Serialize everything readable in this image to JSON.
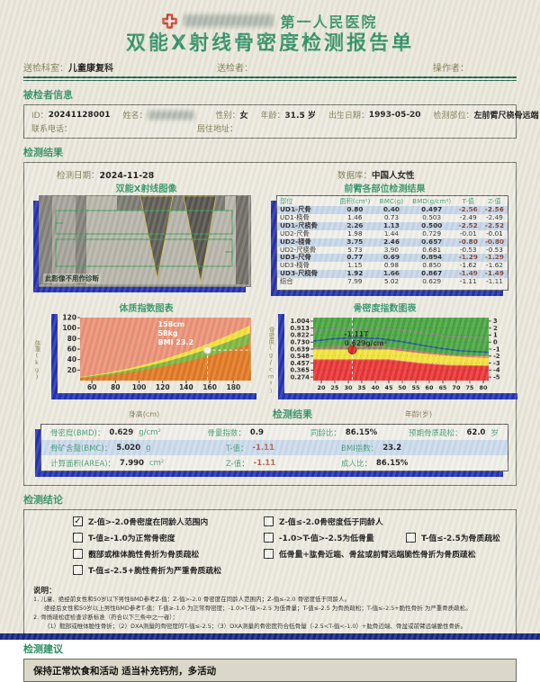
{
  "colors": {
    "heading_green": "#2f8f63",
    "label_olive": "#7d7a4e",
    "axis_blue": "#1c2bb0",
    "stripe_blue": "#c5d5e8",
    "logo_red": "#cc3d2a",
    "bottom_bar_navy": "#10207d",
    "page_background": "#e9e6da"
  },
  "header": {
    "hospital_name": "第一人民医院",
    "report_title": "双能X射线骨密度检测报告单",
    "dept_label": "送检科室：",
    "dept_value": "儿童康复科",
    "sender_label": "送检者：",
    "operator_label": "操作者："
  },
  "patient": {
    "section_title": "被检者信息",
    "id_label": "ID：",
    "id_value": "20241128001",
    "name_label": "姓名：",
    "gender_label": "性别：",
    "gender_value": "女",
    "age_label": "年龄：",
    "age_value": "31.5 岁",
    "birth_label": "出生日期：",
    "birth_value": "1993-05-20",
    "site_label": "检测部位：",
    "site_value": "左前臂尺桡骨远端",
    "phone_label": "联系电话：",
    "address_label": "居住地址："
  },
  "results": {
    "section_title": "检测结果",
    "date_label": "检测日期：",
    "date_value": "2024-11-28",
    "database_label": "数据库：",
    "database_value": "中国人女性",
    "xray_title": "双能X射线图像",
    "xray_note": "此影像不用作诊断",
    "table_title": "前臂各部位检测结果",
    "table": {
      "headers": [
        "部位",
        "面积(cm²)",
        "BMC(g)",
        "BMD(g/cm²)",
        "T-值",
        "Z-值"
      ],
      "rows": [
        [
          "UD1-尺骨",
          "0.80",
          "0.40",
          "0.497",
          "-2.56",
          "-2.56"
        ],
        [
          "UD1-桡骨",
          "1.46",
          "0.73",
          "0.503",
          "-2.49",
          "-2.49"
        ],
        [
          "UD1-尺桡骨",
          "2.26",
          "1.13",
          "0.500",
          "-2.52",
          "-2.52"
        ],
        [
          "UD2-尺骨",
          "1.98",
          "1.44",
          "0.729",
          "-0.01",
          "-0.01"
        ],
        [
          "UD2-桡骨",
          "3.75",
          "2.46",
          "0.657",
          "-0.80",
          "-0.80"
        ],
        [
          "UD2-尺桡骨",
          "5.73",
          "3.90",
          "0.681",
          "-0.53",
          "-0.53"
        ],
        [
          "UD3-尺骨",
          "0.77",
          "0.69",
          "0.894",
          "-1.29",
          "-1.29"
        ],
        [
          "UD3-桡骨",
          "1.15",
          "0.98",
          "0.850",
          "-1.62",
          "-1.62"
        ],
        [
          "UD3-尺桡骨",
          "1.92",
          "1.66",
          "0.867",
          "-1.49",
          "-1.49"
        ],
        [
          "综合",
          "7.99",
          "5.02",
          "0.629",
          "-1.11",
          "-1.11"
        ]
      ]
    },
    "bmi_chart_title": "体质指数图表",
    "bmd_chart_title": "骨密度指数图表",
    "bmi_xlabel": "身高(cm)",
    "bmi_ylabel": "体重(kg)",
    "bmd_xlabel": "年龄(岁)",
    "bmd_ylabel": "骨密度(g/cm²)",
    "summary_title": "检测结果",
    "summary": {
      "rows": [
        [
          {
            "label": "骨密度(BMD)：",
            "value": "0.629",
            "unit": "g/cm²"
          },
          {
            "label": "骨量指数：",
            "value": "0.9"
          },
          {
            "label": "同龄比：",
            "value": "86.15%"
          },
          {
            "label": "预期骨质疏松：",
            "value": "62.0",
            "unit": "岁"
          }
        ],
        [
          {
            "label": "骨矿含量(BMC)：",
            "value": "5.020",
            "unit": "g"
          },
          {
            "label": "T-值：",
            "value": "-1.11",
            "cls": "tz"
          },
          {
            "label": "BMI指数：",
            "value": "23.2"
          }
        ],
        [
          {
            "label": "计算面积(AREA)：",
            "value": "7.990",
            "unit": "cm²"
          },
          {
            "label": "Z-值：",
            "value": "-1.11",
            "cls": "tz"
          },
          {
            "label": "成人比：",
            "value": "86.15%"
          }
        ]
      ]
    }
  },
  "chart_data": [
    {
      "id": "bmi",
      "type": "area",
      "title": "体质指数图表",
      "xlabel": "身高(cm)",
      "ylabel": "体重(kg)",
      "xlim": [
        50,
        195
      ],
      "ylim": [
        0,
        120
      ],
      "xticks": [
        60,
        80,
        100,
        120,
        140,
        160,
        180
      ],
      "yticks": [
        20,
        40,
        60,
        80,
        100,
        120
      ],
      "bmi_boundaries": [
        18.5,
        24,
        28
      ],
      "colors": {
        "under": "#e0741c",
        "normal": "#79b43c",
        "overweight": "#f0e035",
        "obese": "#ea8e72"
      },
      "point": {
        "height_cm": 158,
        "weight_kg": 58,
        "bmi": 23.2
      },
      "annotation": [
        "158cm",
        "58kg",
        "BMI 23.2"
      ],
      "annotation_at": [
        116,
        103
      ]
    },
    {
      "id": "bmd",
      "type": "line",
      "title": "骨密度指数图表",
      "xlabel": "年龄(岁)",
      "ylabel": "骨密度(g/cm²)",
      "xlim": [
        17,
        82
      ],
      "ylim": [
        0.2284,
        1.0497
      ],
      "xticks": [
        20,
        25,
        30,
        35,
        40,
        45,
        50,
        55,
        60,
        65,
        70,
        75,
        80
      ],
      "yticks": [
        "1.004",
        "0.913",
        "0.822",
        "0.730",
        "0.639",
        "0.548",
        "0.457",
        "0.365",
        "0.274"
      ],
      "yticks_right": [
        "3",
        "2",
        "1",
        "0",
        "-1",
        "-2",
        "-3",
        "-4",
        "-5"
      ],
      "colors": {
        "normal": "#43a33c",
        "low_bone_mass": "#f2e337",
        "osteoporosis": "#e82f2f"
      },
      "boundary_low": [
        [
          17,
          0.639
        ],
        [
          45,
          0.639
        ],
        [
          57,
          0.59
        ],
        [
          67,
          0.558
        ],
        [
          82,
          0.545
        ]
      ],
      "boundary_osteo": [
        [
          17,
          0.502
        ],
        [
          45,
          0.502
        ],
        [
          57,
          0.452
        ],
        [
          67,
          0.428
        ],
        [
          82,
          0.418
        ]
      ],
      "mean_curve": [
        [
          17,
          0.745
        ],
        [
          25,
          0.775
        ],
        [
          33,
          0.788
        ],
        [
          42,
          0.775
        ],
        [
          50,
          0.735
        ],
        [
          58,
          0.685
        ],
        [
          65,
          0.645
        ],
        [
          72,
          0.615
        ],
        [
          82,
          0.598
        ]
      ],
      "upper_curve": [
        [
          17,
          0.88
        ],
        [
          28,
          0.912
        ],
        [
          38,
          0.918
        ],
        [
          48,
          0.895
        ],
        [
          58,
          0.845
        ],
        [
          68,
          0.805
        ],
        [
          82,
          0.782
        ]
      ],
      "lower_curve": [
        [
          17,
          0.655
        ],
        [
          30,
          0.672
        ],
        [
          42,
          0.668
        ],
        [
          52,
          0.63
        ],
        [
          62,
          0.58
        ],
        [
          72,
          0.545
        ],
        [
          82,
          0.528
        ]
      ],
      "point": {
        "age": 31.5,
        "bmd": 0.629,
        "t_score": -1.11
      },
      "annotation": [
        "-1.11T",
        "0.629g/cm²"
      ],
      "annotation_at": [
        28.5,
        0.802
      ]
    }
  ],
  "conclusion": {
    "section_title": "检测结论",
    "checkbox_rows": [
      [
        {
          "label": "Z-值>-2.0骨密度在同龄人范围内",
          "checked": true
        },
        {
          "label": "Z-值≤-2.0骨密度低于同龄人",
          "checked": false
        }
      ],
      [
        {
          "label": "T-值≥-1.0为正常骨密度",
          "checked": false
        },
        {
          "label": "-1.0>T-值>-2.5为低骨量",
          "checked": false
        },
        {
          "label": "T-值≤-2.5为骨质疏松",
          "checked": false
        }
      ],
      [
        {
          "label": "髋部或椎体脆性骨折为骨质疏松",
          "checked": false
        },
        {
          "label": "低骨量+肱骨近端、骨盆或前臂远端脆性骨折为骨质疏松",
          "checked": false
        }
      ],
      [
        {
          "label": "T-值≤-2.5+脆性骨折为严重骨质疏松",
          "checked": false
        }
      ]
    ],
    "notes_title": "说明：",
    "notes": [
      {
        "indent": 0,
        "text": "1. 儿童、绝经前女性和50岁以下男性BMD参考Z-值：Z-值>-2.0 骨密度在同龄人范围内；Z-值≤-2.0 骨密度低于同龄人。"
      },
      {
        "indent": 1,
        "text": "绝经后女性和50岁以上男性BMD参考T-值：T-值≥-1.0 为正常骨密度；-1.0>T-值>-2.5 为低骨量；T-值≤-2.5 为骨质疏松；T-值≤-2.5+脆性骨折 为严重骨质疏松。"
      },
      {
        "indent": 0,
        "text": "2. 骨质疏松症检查诊断标准（符合以下三条中之一者）："
      },
      {
        "indent": 1,
        "text": "（1）髋部或椎体脆性骨折；（2）DXA测量的骨密度的T-值≤-2.5；（3）DXA测量的骨密度符合低骨量（-2.5<T-值<-1.0）+肱骨近端、骨盆或前臂远端脆性骨折。"
      }
    ]
  },
  "suggestion": {
    "section_title": "检测建议",
    "text": "保持正常饮食和活动 适当补充钙剂，多活动"
  }
}
